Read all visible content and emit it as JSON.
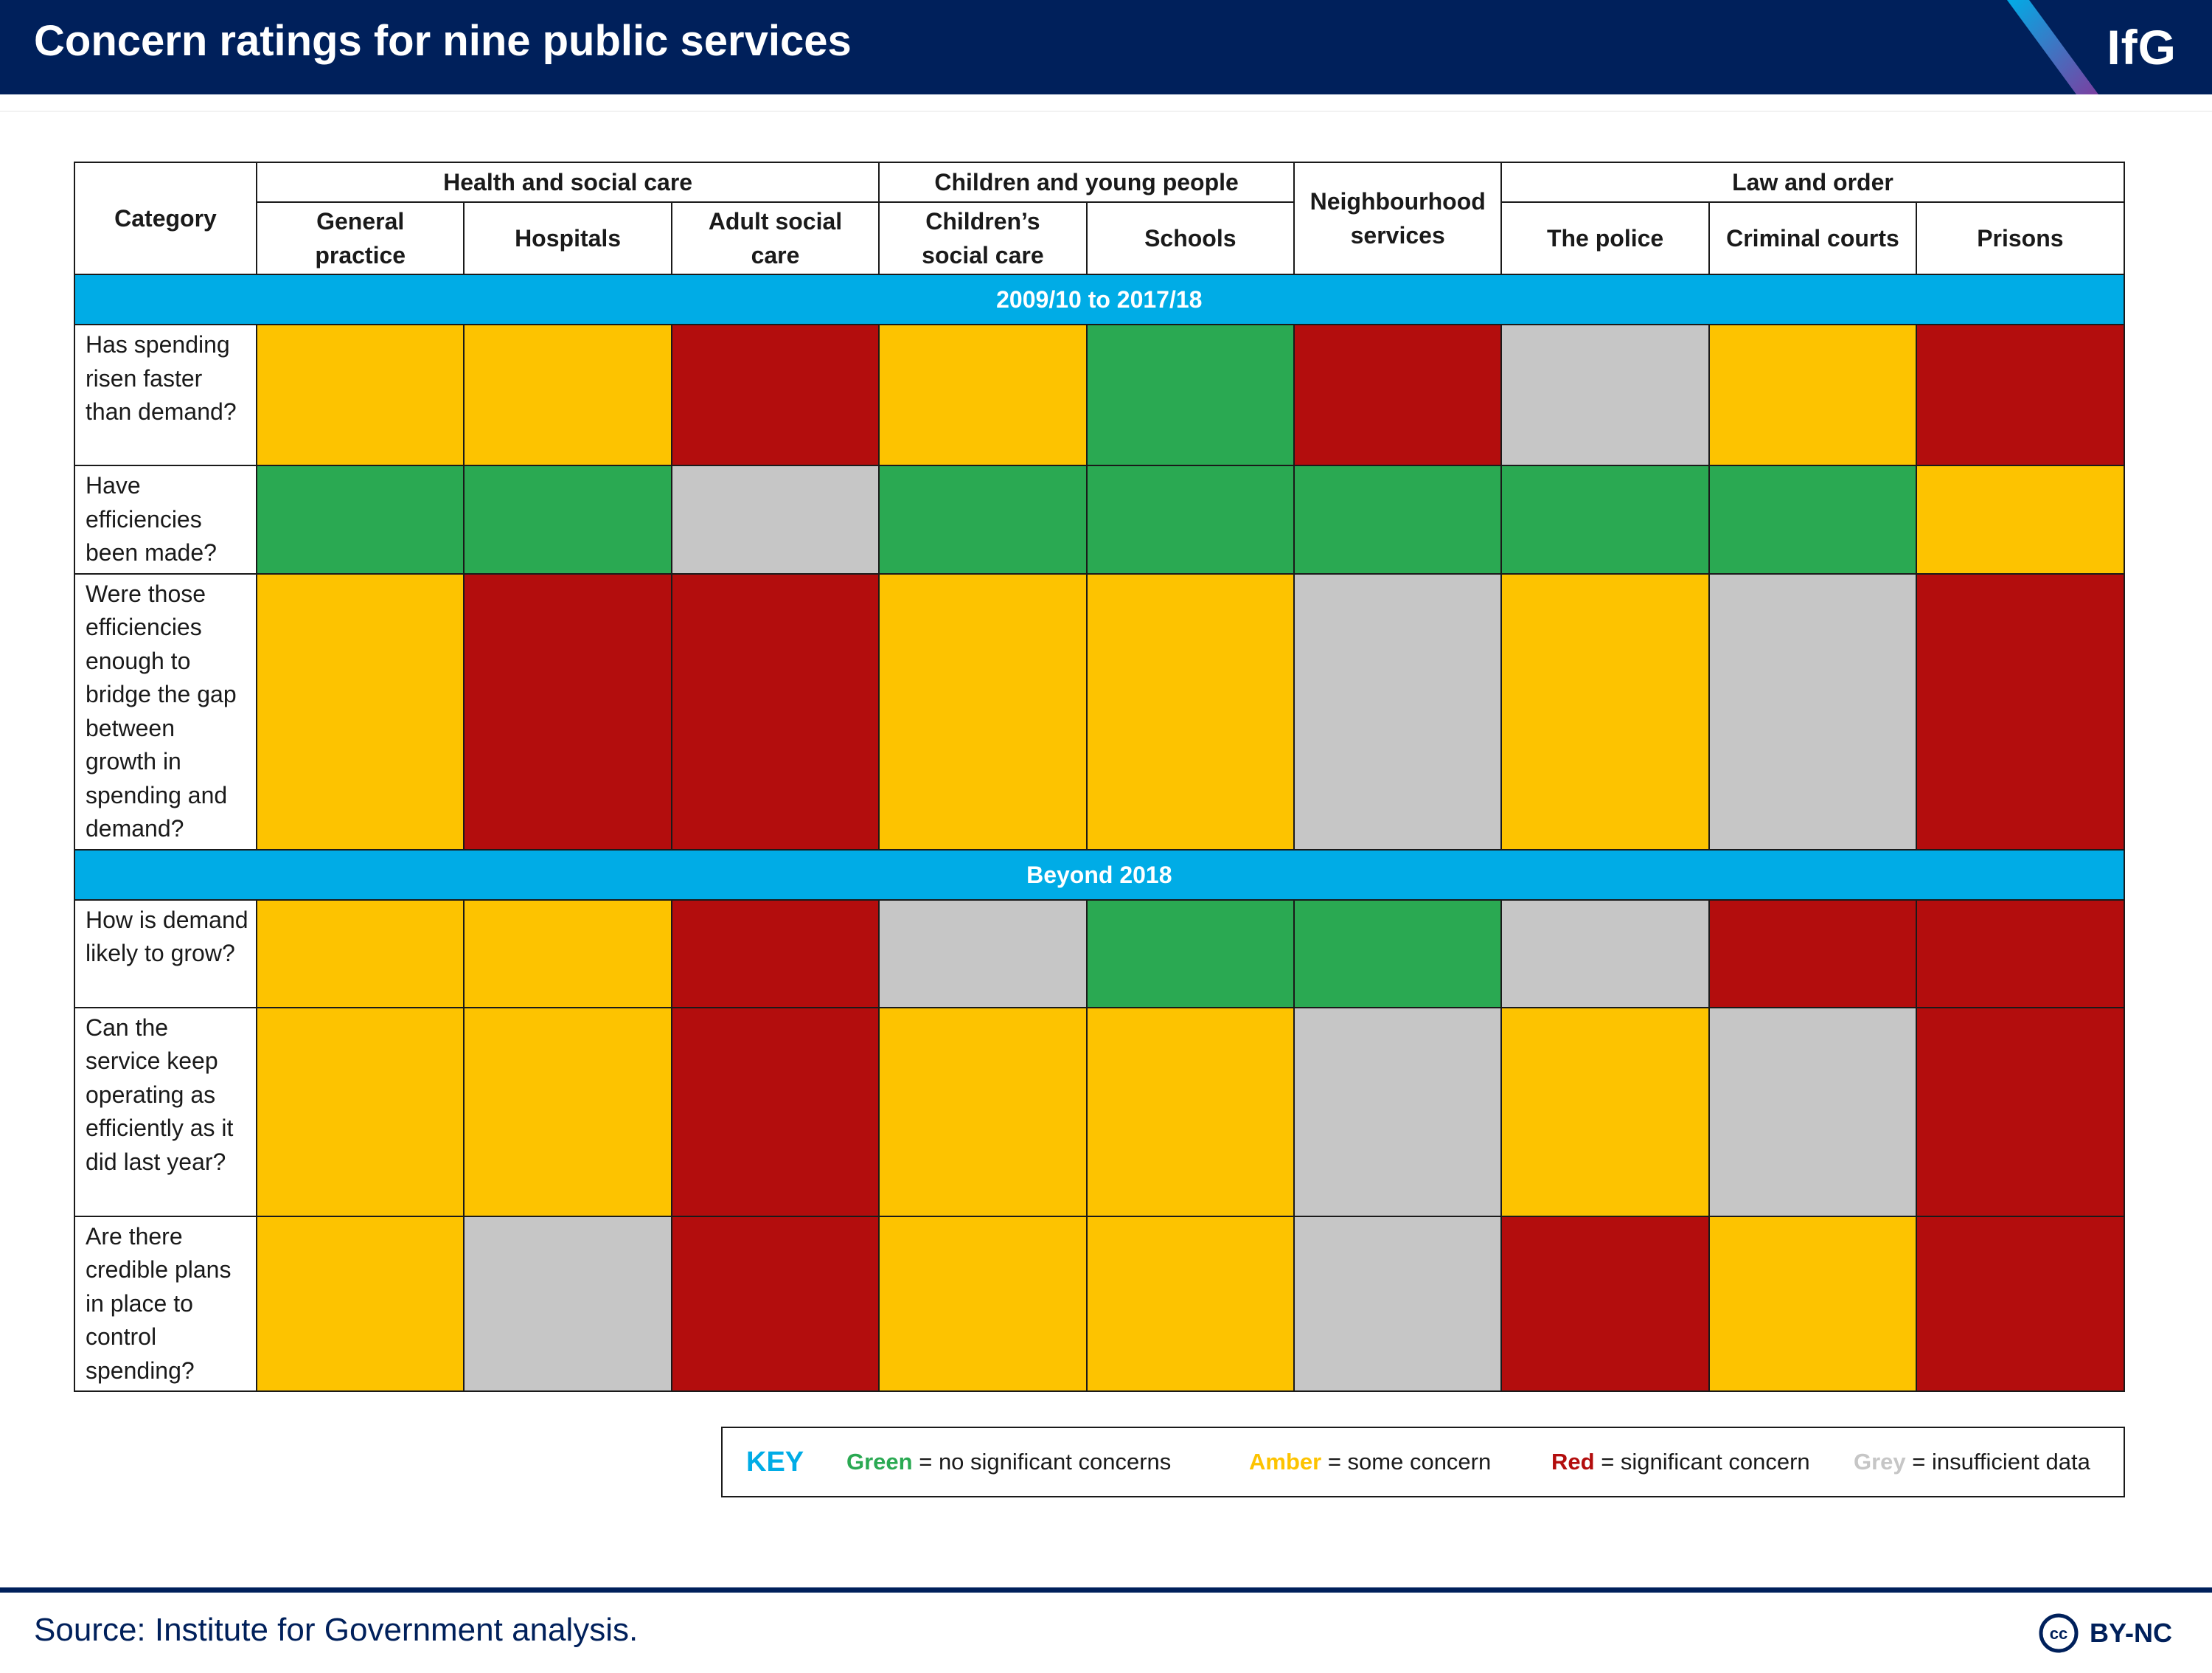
{
  "header": {
    "title": "Concern ratings for nine public services",
    "logo": "IfG"
  },
  "colors": {
    "navy": "#00205b",
    "section": "#00ace6",
    "green": "#2aa952",
    "amber": "#fdc300",
    "red": "#b30d0d",
    "grey": "#c6c6c6"
  },
  "table": {
    "category_label": "Category",
    "groups": [
      {
        "label": "Health and social care",
        "span": 3
      },
      {
        "label": "Children and young people",
        "span": 2
      },
      {
        "label": "Neighbourhood services",
        "span": 1
      },
      {
        "label": "Law and order",
        "span": 3
      }
    ],
    "columns": [
      "General practice",
      "Hospitals",
      "Adult social care",
      "Children’s social care",
      "Schools",
      "The police",
      "Criminal courts",
      "Prisons"
    ]
  },
  "chart_data": {
    "type": "table",
    "title": "Concern ratings for nine public services",
    "services": [
      "General practice",
      "Hospitals",
      "Adult social care",
      "Children’s social care",
      "Schools",
      "Neighbourhood services",
      "The police",
      "Criminal courts",
      "Prisons"
    ],
    "sections": [
      {
        "label": "2009/10 to 2017/18",
        "rows": [
          {
            "question": "Has spending risen faster than demand?",
            "ratings": [
              "amber",
              "amber",
              "red",
              "amber",
              "green",
              "red",
              "grey",
              "amber",
              "red"
            ]
          },
          {
            "question": "Have efficiencies been made?",
            "ratings": [
              "green",
              "green",
              "grey",
              "green",
              "green",
              "green",
              "green",
              "green",
              "amber"
            ]
          },
          {
            "question": "Were those efficiencies enough to bridge the gap between growth in spending and demand?",
            "ratings": [
              "amber",
              "red",
              "red",
              "amber",
              "amber",
              "grey",
              "amber",
              "grey",
              "red"
            ]
          }
        ]
      },
      {
        "label": "Beyond 2018",
        "rows": [
          {
            "question": "How is demand likely to grow?",
            "ratings": [
              "amber",
              "amber",
              "red",
              "grey",
              "green",
              "green",
              "grey",
              "red",
              "red"
            ]
          },
          {
            "question": "Can the service keep operating as efficiently as it did last year?",
            "ratings": [
              "amber",
              "amber",
              "red",
              "amber",
              "amber",
              "grey",
              "amber",
              "grey",
              "red"
            ]
          },
          {
            "question": "Are there credible plans in place to control spending?",
            "ratings": [
              "amber",
              "grey",
              "red",
              "amber",
              "amber",
              "grey",
              "red",
              "amber",
              "red"
            ]
          }
        ]
      }
    ]
  },
  "key": {
    "title": "KEY",
    "items": [
      {
        "word": "Green",
        "text": " = no significant concerns",
        "color": "#2aa952"
      },
      {
        "word": "Amber",
        "text": " = some concern",
        "color": "#fdc300"
      },
      {
        "word": "Red",
        "text": " = significant concern",
        "color": "#b30d0d"
      },
      {
        "word": "Grey",
        "text": " = insufficient data",
        "color": "#c6c6c6"
      }
    ]
  },
  "footer": {
    "source": "Source: Institute for Government analysis.",
    "license": "BY-NC",
    "cc_icon": "cc-icon"
  }
}
